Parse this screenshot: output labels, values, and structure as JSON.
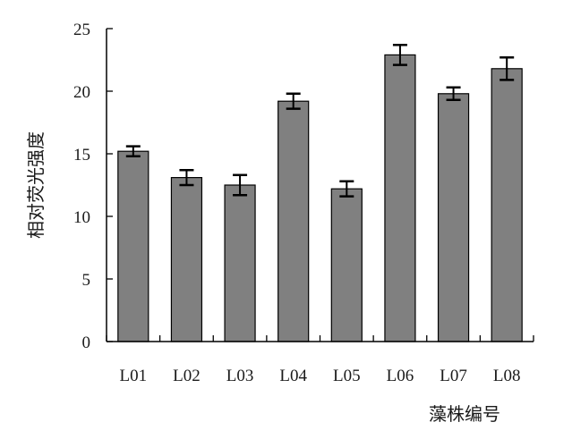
{
  "chart_data": {
    "type": "bar",
    "title": "",
    "xlabel": "藻株编号",
    "ylabel": "相对荧光强度",
    "categories": [
      "L01",
      "L02",
      "L03",
      "L04",
      "L05",
      "L06",
      "L07",
      "L08"
    ],
    "values": [
      15.2,
      13.1,
      12.5,
      19.2,
      12.2,
      22.9,
      19.8,
      21.8
    ],
    "error": [
      0.4,
      0.6,
      0.8,
      0.6,
      0.6,
      0.8,
      0.5,
      0.9
    ],
    "ylim": [
      0,
      25
    ],
    "yticks": [
      "0",
      "5",
      "10",
      "15",
      "20",
      "25"
    ],
    "grid": false,
    "legend": "none",
    "bar_color": "#808080",
    "edge_color": "#000000"
  }
}
